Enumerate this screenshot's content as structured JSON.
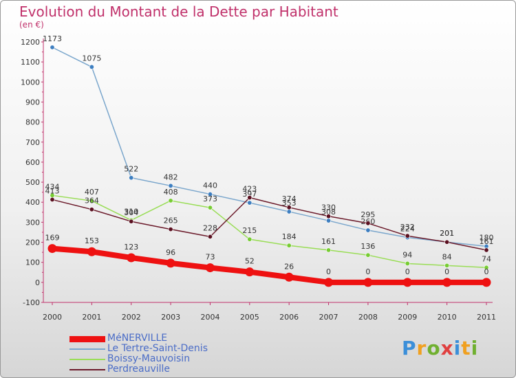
{
  "title": "Evolution du Montant de la Dette par Habitant",
  "unit": "(en €)",
  "logo": "Proxiti",
  "chart_data": {
    "type": "line",
    "categories": [
      "2000",
      "2001",
      "2002",
      "2003",
      "2004",
      "2005",
      "2006",
      "2007",
      "2008",
      "2009",
      "2010",
      "2011"
    ],
    "ylim": [
      -100,
      1200
    ],
    "yticks": [
      -100,
      0,
      100,
      200,
      300,
      400,
      500,
      600,
      700,
      800,
      900,
      1000,
      1100,
      1200
    ],
    "grid": false,
    "legend_position": "bottom-left",
    "series": [
      {
        "name": "MéNERVILLE",
        "color": "#ee1111",
        "values": [
          169,
          153,
          123,
          96,
          73,
          52,
          26,
          0,
          0,
          0,
          0,
          0
        ]
      },
      {
        "name": "Le Tertre-Saint-Denis",
        "color": "#7aa6cc",
        "marker": "#3d7ec0",
        "values": [
          1173,
          1075,
          522,
          482,
          440,
          397,
          353,
          308,
          260,
          224,
          201,
          180
        ]
      },
      {
        "name": "Boissy-Mauvoisin",
        "color": "#99dd55",
        "marker": "#77cc33",
        "values": [
          434,
          407,
          310,
          408,
          373,
          215,
          184,
          161,
          136,
          94,
          84,
          74
        ]
      },
      {
        "name": "Perdreauville",
        "color": "#6b1a2a",
        "marker": "#5a1020",
        "values": [
          413,
          364,
          304,
          265,
          228,
          423,
          374,
          330,
          295,
          232,
          201,
          161
        ]
      }
    ]
  }
}
